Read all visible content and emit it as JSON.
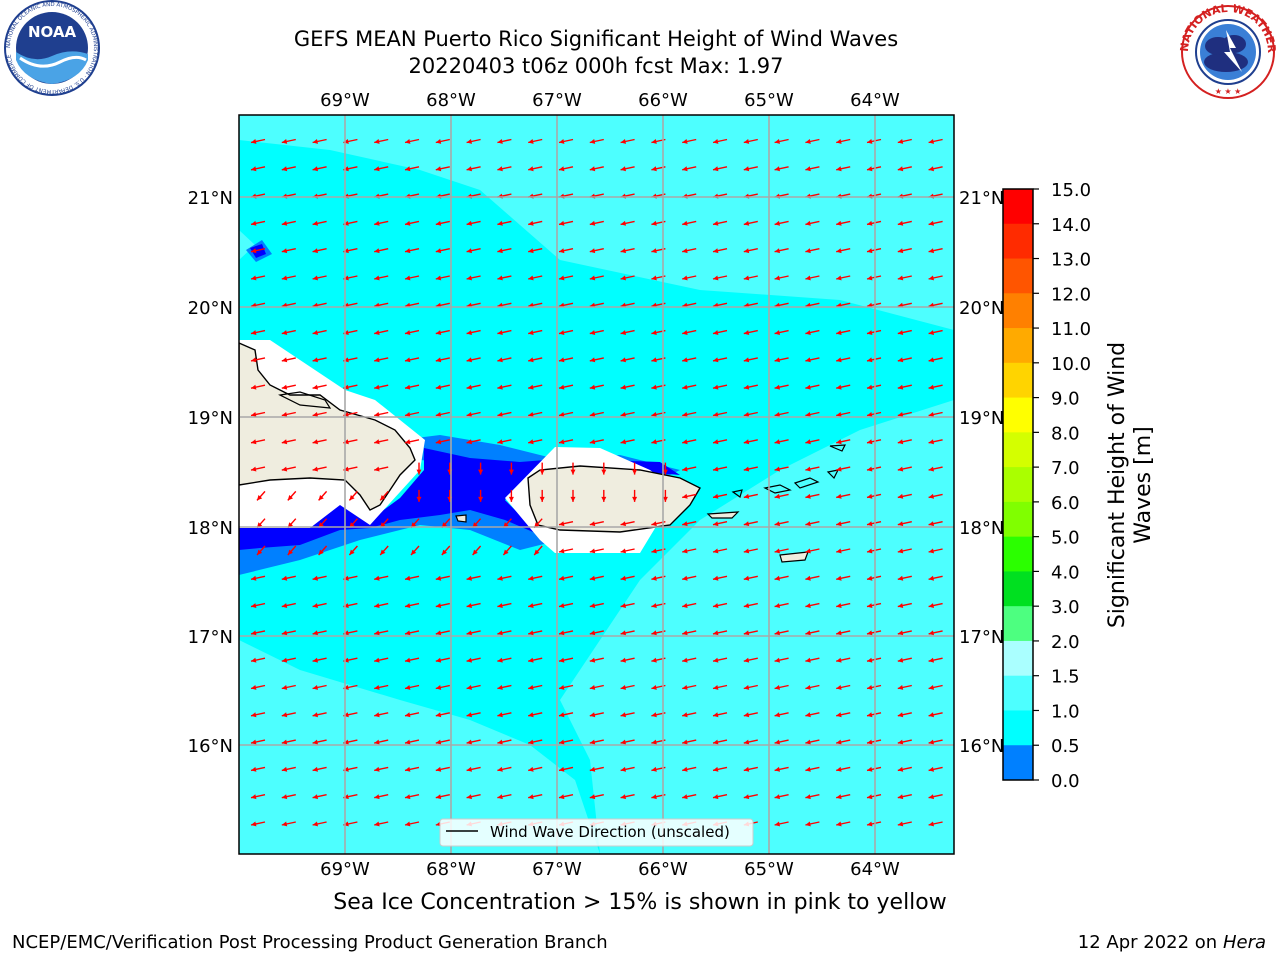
{
  "title": {
    "line1": "GEFS MEAN Puerto Rico Significant Height of Wind Waves",
    "line2": "20220403 t06z 000h fcst   Max: 1.97"
  },
  "logos": {
    "left": {
      "text": "NOAA",
      "ring_text": "NATIONAL OCEANIC AND ATMOSPHERIC ADMINISTRATION · U.S. DEPARTMENT OF COMMERCE"
    },
    "right": {
      "ring_text": "NATIONAL WEATHER SERVICE"
    }
  },
  "map": {
    "lon_ticks": [
      "69°W",
      "68°W",
      "67°W",
      "66°W",
      "65°W",
      "64°W"
    ],
    "lat_ticks": [
      "21°N",
      "20°N",
      "19°N",
      "18°N",
      "17°N",
      "16°N"
    ],
    "legend_label": "Wind Wave Direction (unscaled)",
    "arrow_color": "#ff0000",
    "background_color": "#00ffff",
    "lower_band_color": "#4dffff"
  },
  "colorbar": {
    "label": "Significant Height of Wind Waves [m]",
    "label_line1": "Significant Height of Wind",
    "label_line2": "Waves [m]",
    "ticks": [
      "15.0",
      "14.0",
      "13.0",
      "12.0",
      "11.0",
      "10.0",
      "9.0",
      "8.0",
      "7.0",
      "6.0",
      "5.0",
      "4.0",
      "3.0",
      "2.0",
      "1.5",
      "1.0",
      "0.5",
      "0.0"
    ],
    "colors_top_to_bottom": [
      "#ff0000",
      "#ff2b00",
      "#ff5500",
      "#ff8000",
      "#ffaa00",
      "#ffd400",
      "#ffff00",
      "#d4ff00",
      "#aaff00",
      "#80ff00",
      "#2bff00",
      "#00e020",
      "#4dff80",
      "#aaffff",
      "#4dffff",
      "#00ffff",
      "#0080ff",
      "#0000ff"
    ]
  },
  "footer": {
    "note": "Sea Ice Concentration > 15% is shown in pink to yellow",
    "left": "NCEP/EMC/Verification Post Processing Product Generation Branch",
    "right_date": "12 Apr 2022 on ",
    "right_host": "Hera"
  }
}
